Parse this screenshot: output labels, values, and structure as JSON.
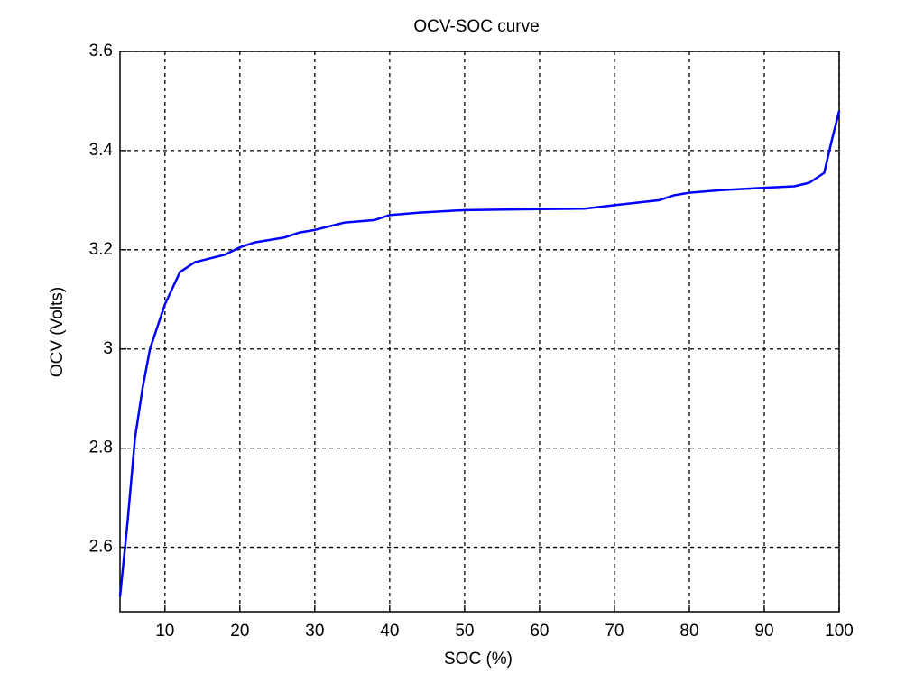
{
  "chart_data": {
    "type": "line",
    "title": "OCV-SOC curve",
    "x_label": "SOC (%)",
    "y_label": "OCV (Volts)",
    "x": [
      4,
      5,
      6,
      7,
      8,
      10,
      12,
      14,
      18,
      20,
      22,
      26,
      28,
      30,
      34,
      38,
      40,
      44,
      50,
      60,
      66,
      70,
      76,
      78,
      80,
      84,
      90,
      94,
      96,
      98,
      99,
      100
    ],
    "series": [
      {
        "name": "OCV",
        "color": "#0000ff",
        "values": [
          2.5,
          2.65,
          2.82,
          2.92,
          3.0,
          3.09,
          3.155,
          3.175,
          3.19,
          3.205,
          3.215,
          3.225,
          3.235,
          3.24,
          3.255,
          3.26,
          3.27,
          3.275,
          3.28,
          3.282,
          3.283,
          3.29,
          3.3,
          3.31,
          3.315,
          3.32,
          3.325,
          3.328,
          3.335,
          3.355,
          3.42,
          3.48
        ]
      }
    ],
    "xlim": [
      4,
      100
    ],
    "ylim": [
      2.47,
      3.6
    ],
    "xticks": [
      10,
      20,
      30,
      40,
      50,
      60,
      70,
      80,
      90,
      100
    ],
    "yticks": [
      2.6,
      2.8,
      3,
      3.2,
      3.4,
      3.6
    ],
    "grid": true
  }
}
